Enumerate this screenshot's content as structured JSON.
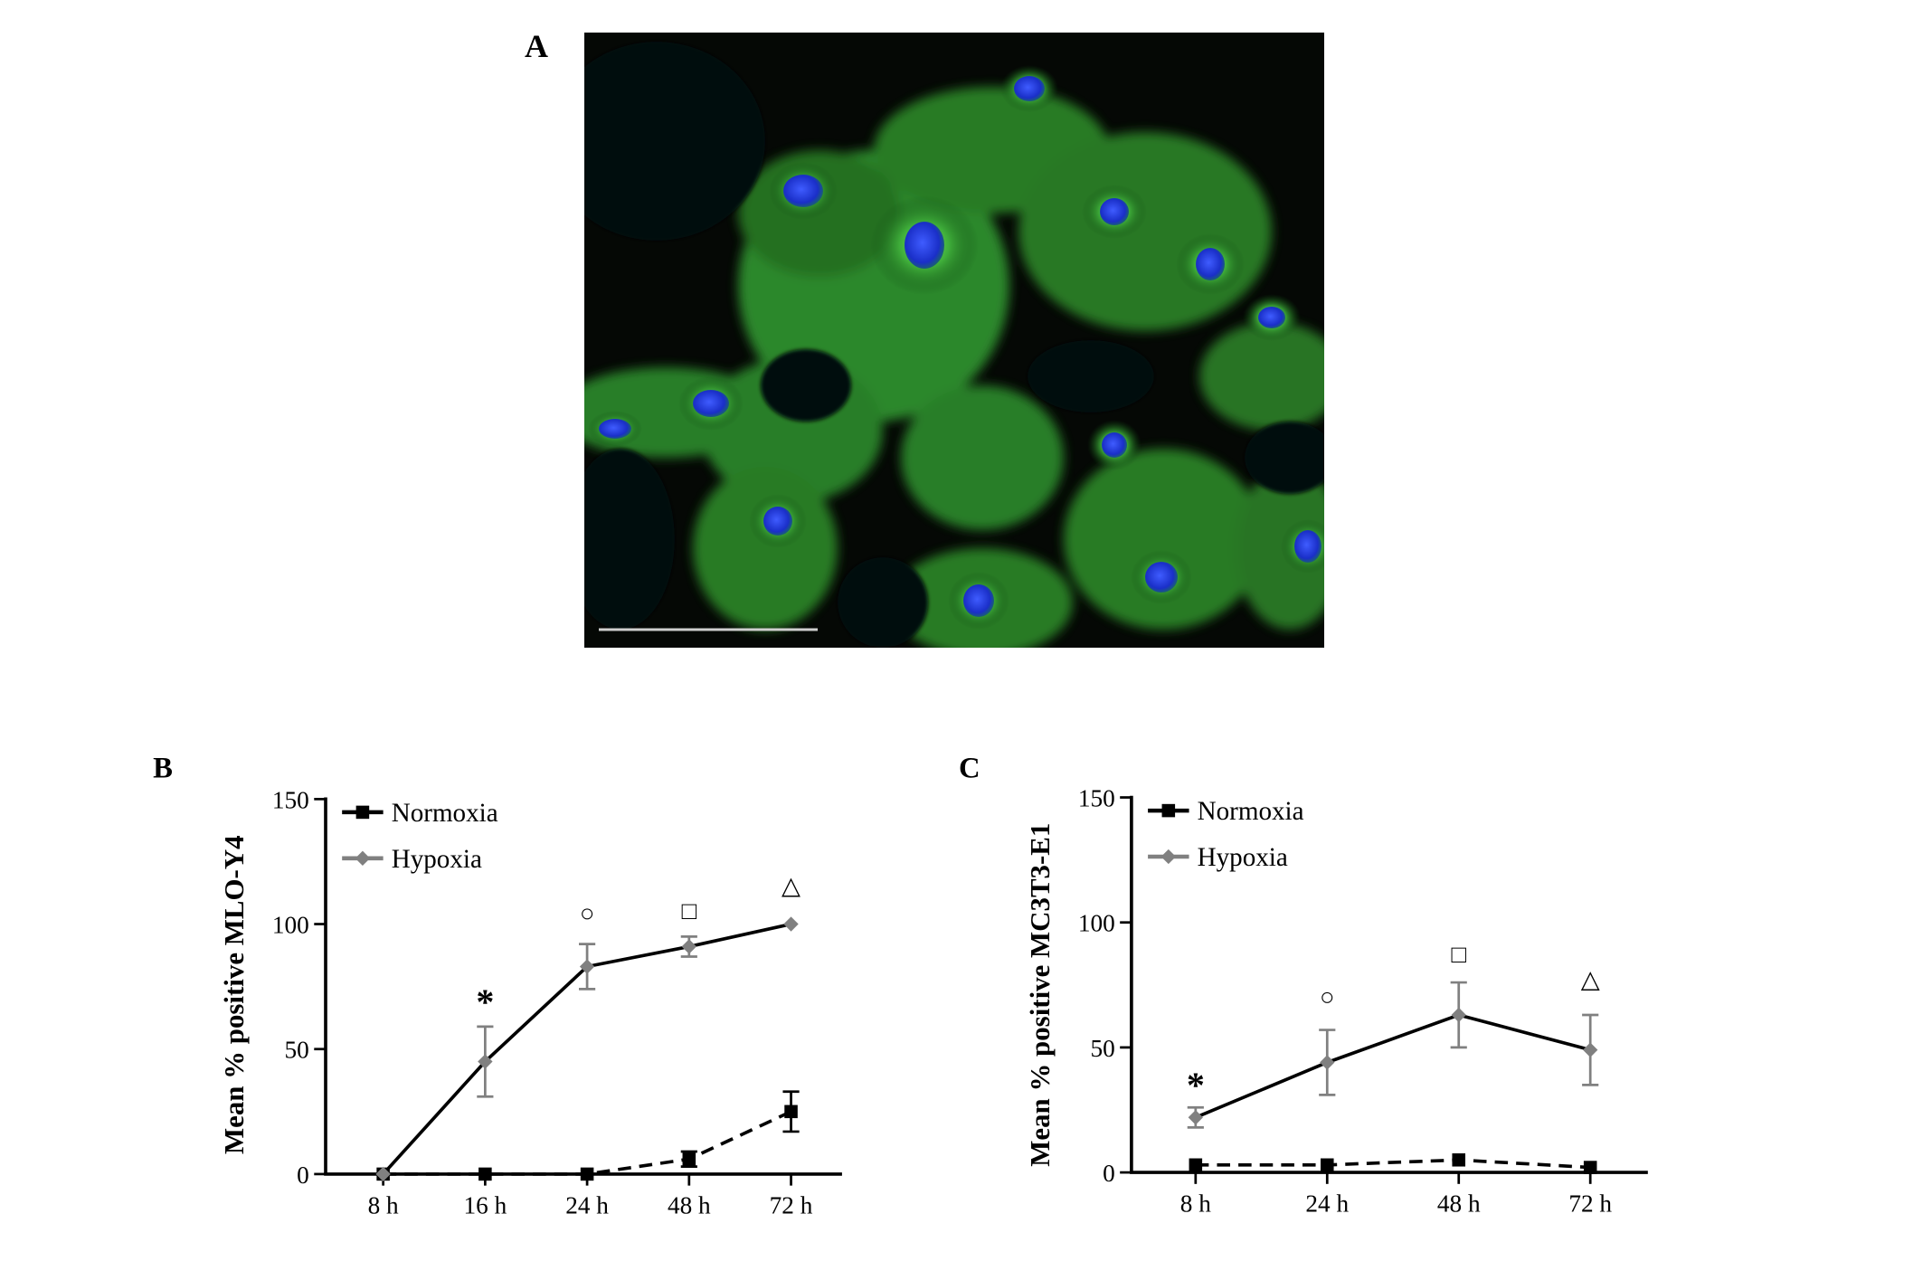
{
  "panels": {
    "a": {
      "letter": "A"
    },
    "b": {
      "letter": "B"
    },
    "c": {
      "letter": "C"
    }
  },
  "chart_data": [
    {
      "type": "line",
      "panel": "B",
      "title": "",
      "xlabel": "",
      "ylabel": "Mean % positive MLO-Y4",
      "categories": [
        "8 h",
        "16 h",
        "24 h",
        "48 h",
        "72 h"
      ],
      "ylim": [
        0,
        150
      ],
      "yticks": [
        0,
        50,
        100,
        150
      ],
      "legend_position": "top-left",
      "series": [
        {
          "name": "Normoxia",
          "marker": "square",
          "color": "#000000",
          "line": "dashed",
          "values": [
            0,
            0,
            0,
            6,
            25
          ],
          "error": [
            0,
            0,
            0,
            3,
            8
          ]
        },
        {
          "name": "Hypoxia",
          "marker": "diamond",
          "color": "#808080",
          "line": "solid",
          "values": [
            0,
            45,
            83,
            91,
            100
          ],
          "error": [
            0,
            14,
            9,
            4,
            0
          ]
        }
      ],
      "annotations": [
        {
          "category": "16 h",
          "symbol": "*",
          "y": 68
        },
        {
          "category": "24 h",
          "symbol": "○",
          "y": 105
        },
        {
          "category": "48 h",
          "symbol": "□",
          "y": 106
        },
        {
          "category": "72 h",
          "symbol": "△",
          "y": 116
        }
      ]
    },
    {
      "type": "line",
      "panel": "C",
      "title": "",
      "xlabel": "",
      "ylabel": "Mean % positive MC3T3-E1",
      "categories": [
        "8 h",
        "24 h",
        "48 h",
        "72 h"
      ],
      "ylim": [
        0,
        150
      ],
      "yticks": [
        0,
        50,
        100,
        150
      ],
      "legend_position": "top-left",
      "series": [
        {
          "name": "Normoxia",
          "marker": "square",
          "color": "#000000",
          "line": "dashed",
          "values": [
            3,
            3,
            5,
            2
          ],
          "error": [
            0,
            0,
            0,
            0
          ]
        },
        {
          "name": "Hypoxia",
          "marker": "diamond",
          "color": "#808080",
          "line": "solid",
          "values": [
            22,
            44,
            63,
            49
          ],
          "error": [
            4,
            13,
            13,
            14
          ]
        }
      ],
      "annotations": [
        {
          "category": "8 h",
          "symbol": "*",
          "y": 34
        },
        {
          "category": "24 h",
          "symbol": "○",
          "y": 71
        },
        {
          "category": "48 h",
          "symbol": "□",
          "y": 88
        },
        {
          "category": "72 h",
          "symbol": "△",
          "y": 78
        }
      ]
    }
  ]
}
